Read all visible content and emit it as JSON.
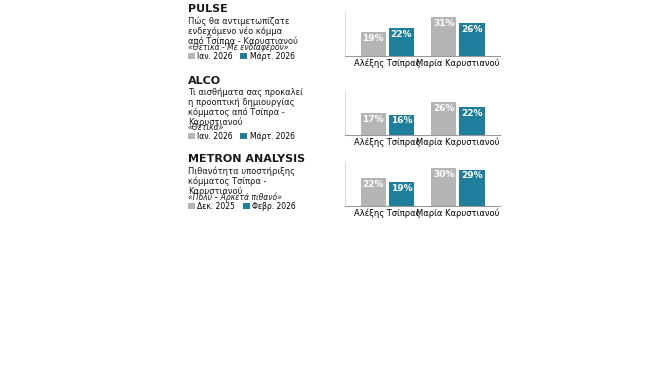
{
  "chart_data": [
    {
      "type": "bar",
      "title": "PULSE",
      "subtitle": "Πώς θα αντιμετωπίζατε\nενδεχόμενο νέο κόμμα\nαπό Τσίπρα - Καρυστιανού",
      "annotation": "«Θετικά - Με ενδιαφέρον»",
      "categories": [
        "Αλέξης Τσίπρας",
        "Μαρία Καρυστιανού"
      ],
      "series": [
        {
          "name": "Ιαν. 2026",
          "color": "#b5b5b5",
          "values": [
            19,
            31
          ],
          "value_labels": [
            "19%",
            "31%"
          ]
        },
        {
          "name": "Μάρτ. 2026",
          "color": "#1d7f9b",
          "values": [
            22,
            26
          ],
          "value_labels": [
            "22%",
            "26%"
          ]
        }
      ],
      "ylim": [
        0,
        35
      ],
      "yticks": [],
      "data_labels": true,
      "tick_labels": "x",
      "legend": "upper left"
    },
    {
      "type": "bar",
      "title": "ALCO",
      "subtitle": "Τι αισθήματα σας προκαλεί\nη προοπτική δημιουργίας\nκόμματος από Τσίπρα -\nΚαρυστιανού",
      "annotation": "«Θετικά»",
      "categories": [
        "Αλέξης Τσίπρας",
        "Μαρία Καρυστιανού"
      ],
      "series": [
        {
          "name": "Ιαν. 2026",
          "color": "#b5b5b5",
          "values": [
            17,
            26
          ],
          "value_labels": [
            "17%",
            "26%"
          ]
        },
        {
          "name": "Μάρτ. 2026",
          "color": "#1d7f9b",
          "values": [
            16,
            22
          ],
          "value_labels": [
            "16%",
            "22%"
          ]
        }
      ],
      "ylim": [
        0,
        35
      ],
      "yticks": [],
      "data_labels": true,
      "tick_labels": "x",
      "legend": "upper left"
    },
    {
      "type": "bar",
      "title": "METRON ANALYSIS",
      "subtitle": "Πιθανότητα υποστήριξης\nκόμματος Τσίπρα -\nΚαρυστιανού",
      "annotation": "«Πολύ – Αρκετά πιθανό»",
      "categories": [
        "Αλέξης Τσίπρας",
        "Μαρία Καρυστιανού"
      ],
      "series": [
        {
          "name": "Δεκ. 2025",
          "color": "#b5b5b5",
          "values": [
            22,
            30
          ],
          "value_labels": [
            "22%",
            "30%"
          ]
        },
        {
          "name": "Φεβρ. 2026",
          "color": "#1d7f9b",
          "values": [
            19,
            29
          ],
          "value_labels": [
            "19%",
            "29%"
          ]
        }
      ],
      "ylim": [
        0,
        35
      ],
      "yticks": [],
      "data_labels": true,
      "tick_labels": "x",
      "legend": "upper left"
    }
  ]
}
